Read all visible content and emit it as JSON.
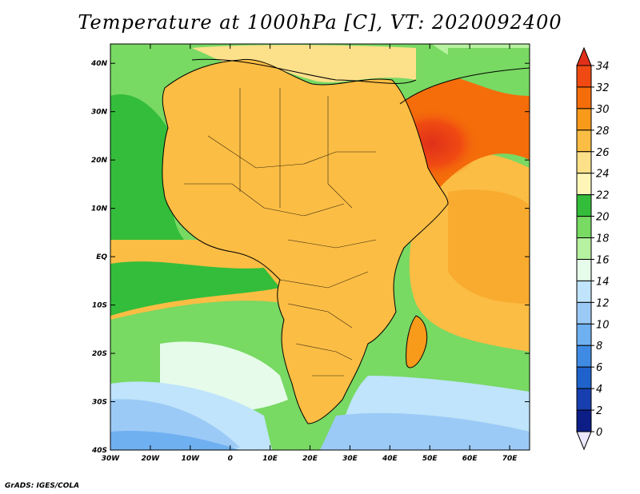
{
  "title": "Temperature at 1000hPa [C], VT: 2020092400",
  "credit": "GrADS: IGES/COLA",
  "map": {
    "region": "Africa",
    "lon_range": [
      -30,
      75
    ],
    "lat_range": [
      -40,
      44
    ],
    "x_ticks": [
      "30W",
      "20W",
      "10W",
      "0",
      "10E",
      "20E",
      "30E",
      "40E",
      "50E",
      "60E",
      "70E"
    ],
    "y_ticks": [
      "40N",
      "30N",
      "20N",
      "10N",
      "EQ",
      "10S",
      "20S",
      "30S",
      "40S"
    ]
  },
  "colorbar": {
    "labels": [
      "34",
      "32",
      "30",
      "28",
      "26",
      "24",
      "22",
      "20",
      "18",
      "16",
      "14",
      "12",
      "10",
      "8",
      "6",
      "4",
      "2",
      "0"
    ],
    "colors": [
      "#e0301a",
      "#f04a12",
      "#f46d0a",
      "#f89a1a",
      "#fbbd44",
      "#fde08a",
      "#fff6b8",
      "#33bd3b",
      "#78d963",
      "#b6f2a0",
      "#e6fbea",
      "#bfe4fb",
      "#9ccaf6",
      "#6fb0f1",
      "#3f8be4",
      "#1f62cb",
      "#173fb0",
      "#0c1e86",
      "#08126a"
    ]
  }
}
